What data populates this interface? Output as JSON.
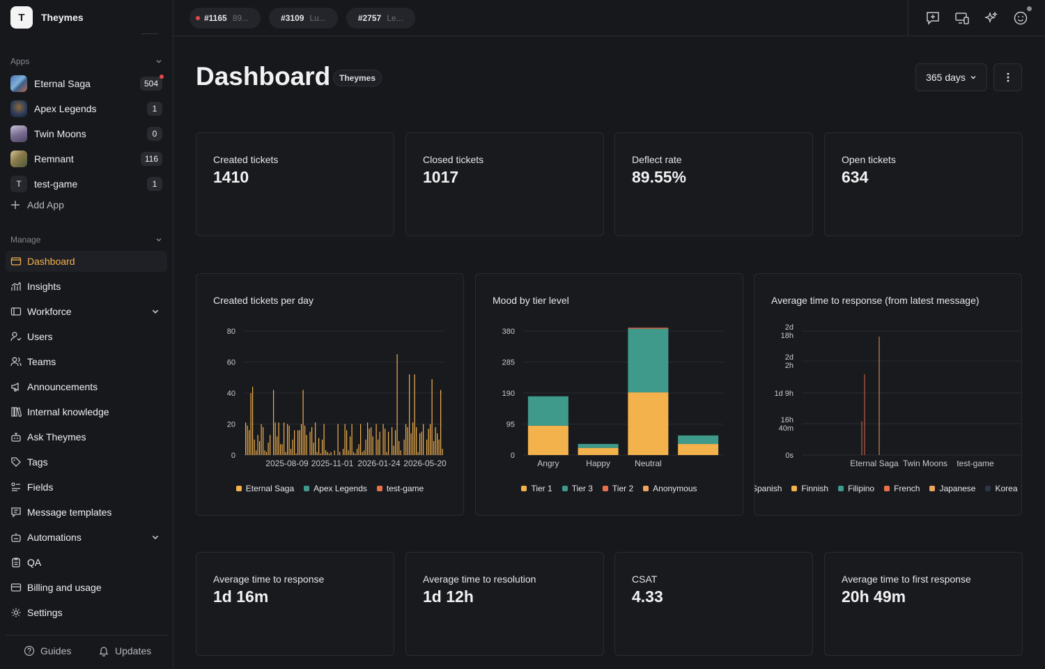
{
  "workspace": {
    "initial": "T",
    "name": "Theymes"
  },
  "apps_section": {
    "title": "Apps",
    "items": [
      {
        "name": "Eternal Saga",
        "count": "504"
      },
      {
        "name": "Apex Legends",
        "count": "1"
      },
      {
        "name": "Twin Moons",
        "count": "0"
      },
      {
        "name": "Remnant",
        "count": "116"
      },
      {
        "name": "test-game",
        "count": "1",
        "initial": "T"
      }
    ],
    "add_label": "Add App"
  },
  "manage_section": {
    "title": "Manage",
    "items": [
      {
        "label": "Dashboard",
        "icon": "dashboard-icon",
        "active": true
      },
      {
        "label": "Insights",
        "icon": "insights-icon"
      },
      {
        "label": "Workforce",
        "icon": "workforce-icon",
        "expandable": true
      },
      {
        "label": "Users",
        "icon": "users-icon"
      },
      {
        "label": "Teams",
        "icon": "teams-icon"
      },
      {
        "label": "Announcements",
        "icon": "megaphone-icon"
      },
      {
        "label": "Internal knowledge",
        "icon": "library-icon"
      },
      {
        "label": "Ask Theymes",
        "icon": "bot-icon"
      },
      {
        "label": "Tags",
        "icon": "tag-icon"
      },
      {
        "label": "Fields",
        "icon": "fields-icon"
      },
      {
        "label": "Message templates",
        "icon": "template-icon"
      },
      {
        "label": "Automations",
        "icon": "automation-icon",
        "expandable": true
      },
      {
        "label": "QA",
        "icon": "clipboard-icon"
      },
      {
        "label": "Billing and usage",
        "icon": "billing-icon"
      },
      {
        "label": "Settings",
        "icon": "gear-icon"
      }
    ]
  },
  "footer": {
    "guides": "Guides",
    "updates": "Updates"
  },
  "ticket_tabs": [
    {
      "id": "#1165",
      "preview": "89...",
      "unread": true
    },
    {
      "id": "#3109",
      "preview": "Lu...",
      "unread": false
    },
    {
      "id": "#2757",
      "preview": "Le...",
      "unread": false
    }
  ],
  "header": {
    "title": "Dashboard",
    "workspace_pill": "Theymes",
    "range": "365 days"
  },
  "stats_top": [
    {
      "label": "Created tickets",
      "value": "1410"
    },
    {
      "label": "Closed tickets",
      "value": "1017"
    },
    {
      "label": "Deflect rate",
      "value": "89.55%"
    },
    {
      "label": "Open tickets",
      "value": "634"
    }
  ],
  "stats_bottom": [
    {
      "label": "Average time to response",
      "value": "1d 16m"
    },
    {
      "label": "Average time to resolution",
      "value": "1d 12h"
    },
    {
      "label": "CSAT",
      "value": "4.33"
    },
    {
      "label": "Average time to first response",
      "value": "20h 49m"
    }
  ],
  "colors": {
    "accent": "#f4b24c",
    "teal": "#3f9a8c",
    "orange": "#e8714a",
    "peach": "#f0a55e",
    "navy": "#2d3548"
  },
  "chart_data": [
    {
      "type": "bar",
      "title": "Created tickets per day",
      "ylim": [
        0,
        80
      ],
      "yticks": [
        0,
        20,
        40,
        60,
        80
      ],
      "x_tick_labels": [
        "2025-08-09",
        "2025-11-01",
        "2026-01-24",
        "2026-05-20"
      ],
      "series": [
        {
          "name": "Eternal Saga",
          "color": "#f4b24c",
          "values": [
            21,
            19,
            16,
            40,
            44,
            10,
            3,
            13,
            9,
            20,
            18,
            3,
            2,
            8,
            13,
            0,
            42,
            21,
            12,
            21,
            7,
            7,
            21,
            2,
            20,
            19,
            4,
            10,
            16,
            1,
            16,
            16,
            20,
            42,
            19,
            13,
            0,
            15,
            18,
            8,
            21,
            2,
            11,
            1,
            10,
            20,
            3,
            2,
            1,
            2,
            0,
            3,
            0,
            20,
            2,
            0,
            4,
            20,
            16,
            3,
            12,
            20,
            2,
            1,
            4,
            7,
            20,
            2,
            3,
            10,
            21,
            17,
            18,
            12,
            0,
            20,
            10,
            15,
            0,
            20,
            17,
            2,
            15,
            0,
            18,
            6,
            16,
            65,
            9,
            3,
            0,
            10,
            20,
            18,
            52,
            14,
            21,
            52,
            18,
            2,
            14,
            15,
            20,
            0,
            10,
            17,
            20,
            49,
            9,
            18,
            14,
            10,
            42,
            4
          ]
        },
        {
          "name": "Apex Legends",
          "color": "#3f9a8c",
          "values": []
        },
        {
          "name": "test-game",
          "color": "#e8714a",
          "values": []
        }
      ]
    },
    {
      "type": "bar",
      "stacked": true,
      "title": "Mood by tier level",
      "ylim": [
        0,
        380
      ],
      "yticks": [
        0,
        95,
        190,
        285,
        380
      ],
      "categories": [
        "Angry",
        "Happy",
        "Neutral",
        ""
      ],
      "series": [
        {
          "name": "Tier 1",
          "color": "#f4b24c",
          "values": [
            90,
            22,
            192,
            34
          ]
        },
        {
          "name": "Tier 3",
          "color": "#3f9a8c",
          "values": [
            90,
            12,
            195,
            26
          ]
        },
        {
          "name": "Tier 2",
          "color": "#e8714a",
          "values": [
            0,
            0,
            3,
            0
          ]
        },
        {
          "name": "Anonymous",
          "color": "#f0a55e",
          "values": [
            0,
            0,
            0,
            0
          ]
        }
      ]
    },
    {
      "type": "bar",
      "title": "Average time to response (from latest message)",
      "yticks": [
        "0s",
        "16h 40m",
        "1d 9h",
        "2d 2h",
        "2d 18h"
      ],
      "ylim_hours": [
        0,
        66
      ],
      "categories": [
        "Eternal Saga",
        "Twin Moons",
        "test-game"
      ],
      "spikes_hours": [
        18,
        43,
        63
      ],
      "legend": [
        "Spanish",
        "Finnish",
        "Filipino",
        "French",
        "Japanese",
        "Korea"
      ],
      "legend_colors": [
        "#e8714a",
        "#f4b24c",
        "#3f9a8c",
        "#e8714a",
        "#f0a55e",
        "#2d3548"
      ]
    }
  ]
}
